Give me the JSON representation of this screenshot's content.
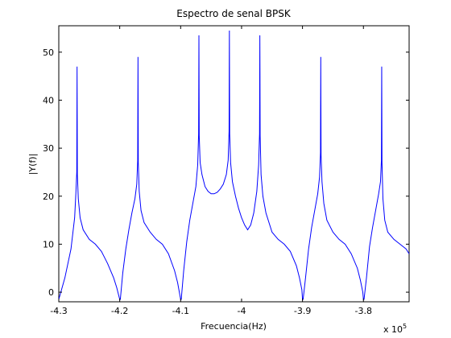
{
  "chart_data": {
    "type": "line",
    "title": "Espectro de senal BPSK",
    "xlabel": "Frecuencia(Hz)",
    "ylabel": "|Y(f)|",
    "x_multiplier_label": "x 10",
    "x_multiplier_exponent": "5",
    "xlim": [
      -4.3,
      -3.725
    ],
    "ylim": [
      -2,
      55.5
    ],
    "xticks": [
      "-4.3",
      "-4.2",
      "-4.1",
      "-4",
      "-3.9",
      "-3.8"
    ],
    "xtick_values": [
      -4.3,
      -4.2,
      -4.1,
      -4.0,
      -3.9,
      -3.8
    ],
    "yticks": [
      "0",
      "10",
      "20",
      "30",
      "40",
      "50"
    ],
    "ytick_values": [
      0,
      10,
      20,
      30,
      40,
      50
    ],
    "grid": false,
    "line_color": "#0000ff",
    "series": [
      {
        "x": [
          -4.3,
          -4.29,
          -4.28,
          -4.274,
          -4.272,
          -4.2705,
          -4.27,
          -4.2695,
          -4.268,
          -4.265,
          -4.26,
          -4.25,
          -4.24,
          -4.23,
          -4.22,
          -4.21,
          -4.205,
          -4.2,
          -4.199,
          -4.195,
          -4.19,
          -4.185,
          -4.18,
          -4.175,
          -4.172,
          -4.1705,
          -4.17,
          -4.1695,
          -4.168,
          -4.165,
          -4.16,
          -4.15,
          -4.14,
          -4.13,
          -4.12,
          -4.11,
          -4.105,
          -4.1,
          -4.099,
          -4.095,
          -4.09,
          -4.085,
          -4.08,
          -4.075,
          -4.072,
          -4.0705,
          -4.07,
          -4.0695,
          -4.068,
          -4.065,
          -4.06,
          -4.055,
          -4.05,
          -4.045,
          -4.04,
          -4.035,
          -4.03,
          -4.025,
          -4.022,
          -4.0205,
          -4.02,
          -4.0195,
          -4.018,
          -4.015,
          -4.01,
          -4.005,
          -4.0,
          -3.995,
          -3.99,
          -3.985,
          -3.98,
          -3.975,
          -3.972,
          -3.9705,
          -3.97,
          -3.9695,
          -3.968,
          -3.965,
          -3.96,
          -3.95,
          -3.94,
          -3.93,
          -3.92,
          -3.91,
          -3.905,
          -3.901,
          -3.9,
          -3.899,
          -3.895,
          -3.89,
          -3.885,
          -3.88,
          -3.875,
          -3.872,
          -3.8705,
          -3.87,
          -3.8695,
          -3.868,
          -3.865,
          -3.86,
          -3.85,
          -3.84,
          -3.83,
          -3.82,
          -3.81,
          -3.805,
          -3.801,
          -3.8,
          -3.799,
          -3.795,
          -3.79,
          -3.785,
          -3.78,
          -3.775,
          -3.772,
          -3.7705,
          -3.77,
          -3.7695,
          -3.768,
          -3.765,
          -3.76,
          -3.75,
          -3.74,
          -3.73,
          -3.725
        ],
        "y": [
          -1.5,
          3.0,
          9.0,
          15.5,
          20.5,
          25.0,
          47.0,
          24.5,
          19.5,
          15.5,
          13.0,
          11.0,
          10.0,
          8.5,
          6.0,
          3.0,
          1.0,
          -1.5,
          -1.5,
          4.0,
          9.0,
          13.0,
          16.5,
          19.5,
          22.5,
          27.5,
          49.0,
          27.0,
          21.0,
          17.0,
          14.5,
          12.5,
          11.0,
          10.0,
          8.0,
          4.5,
          2.0,
          -1.5,
          -1.5,
          4.5,
          10.5,
          15.0,
          18.5,
          22.0,
          26.5,
          33.0,
          53.5,
          32.5,
          27.0,
          24.5,
          22.0,
          21.0,
          20.5,
          20.5,
          20.8,
          21.5,
          22.5,
          24.5,
          27.5,
          33.5,
          54.5,
          33.0,
          27.0,
          23.0,
          20.0,
          17.5,
          15.5,
          14.0,
          13.0,
          14.0,
          16.5,
          21.0,
          26.5,
          33.0,
          53.5,
          32.5,
          24.5,
          20.0,
          16.5,
          12.5,
          11.0,
          10.0,
          8.5,
          5.5,
          3.0,
          0.5,
          -1.5,
          -1.5,
          3.0,
          9.0,
          13.5,
          17.0,
          20.5,
          24.0,
          29.0,
          49.0,
          28.5,
          23.0,
          18.5,
          15.0,
          12.5,
          11.0,
          10.0,
          8.0,
          5.0,
          2.5,
          0.0,
          -1.5,
          -1.5,
          3.0,
          9.5,
          13.5,
          17.0,
          20.5,
          23.0,
          27.5,
          47.0,
          27.0,
          19.5,
          15.0,
          12.5,
          11.0,
          10.0,
          9.0,
          8.0
        ]
      }
    ]
  }
}
